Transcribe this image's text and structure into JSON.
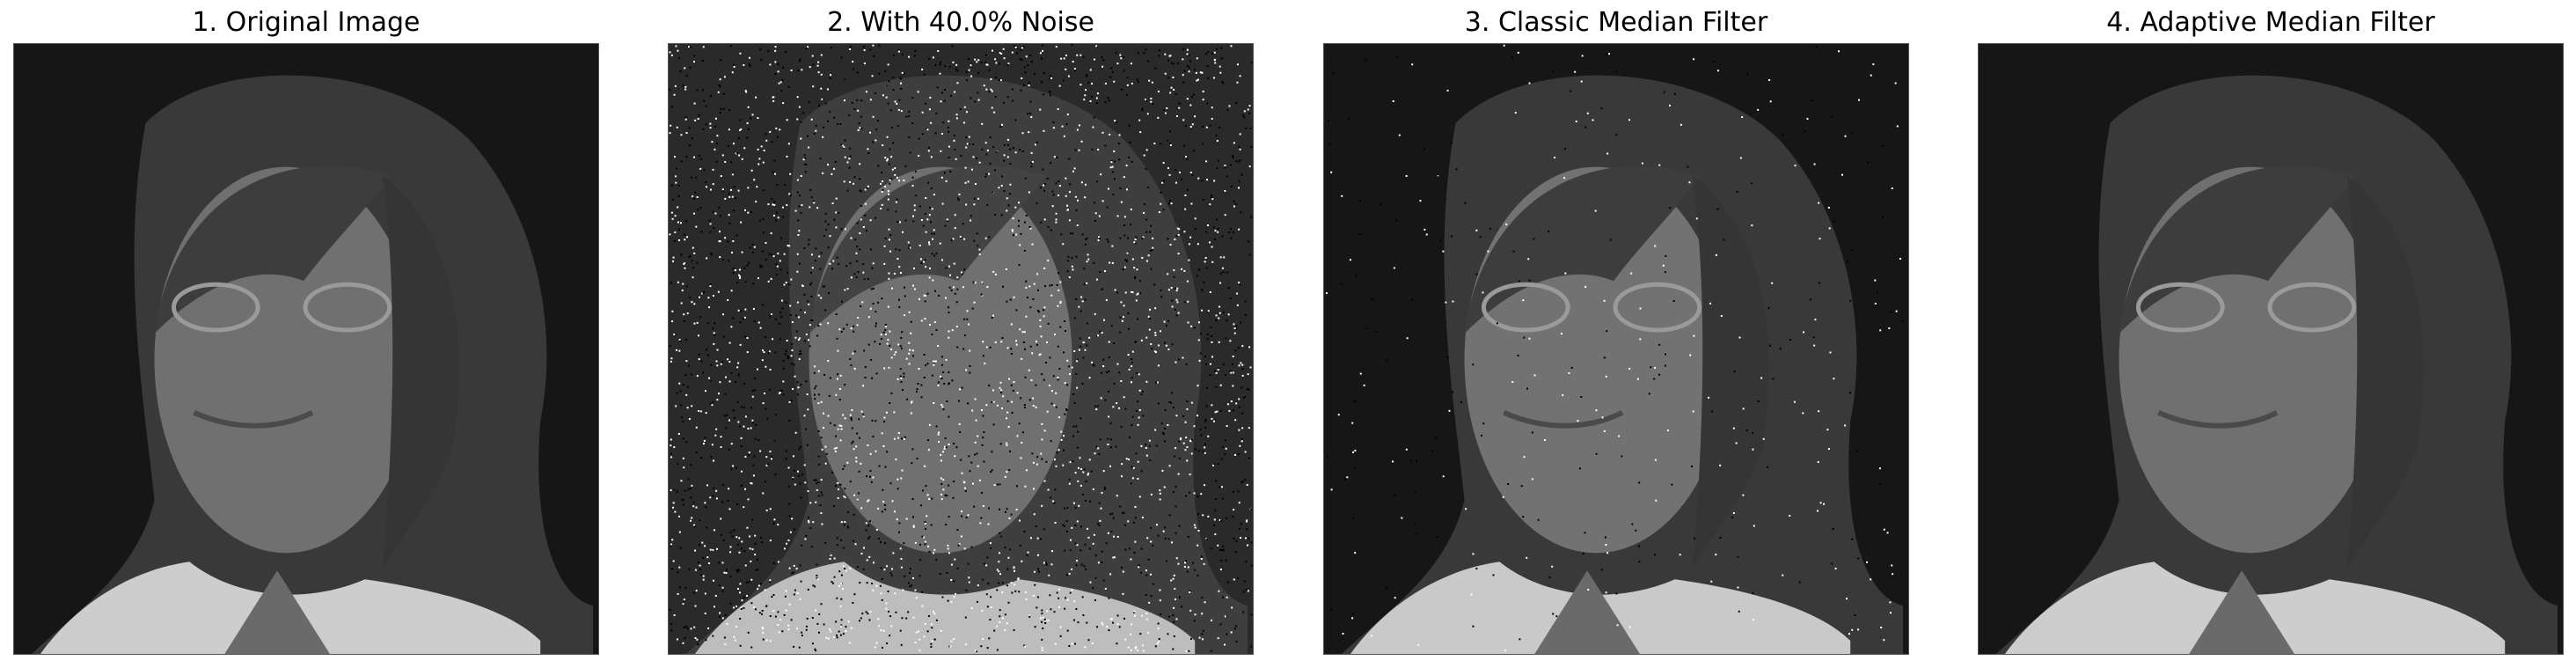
{
  "figure": {
    "panels": [
      {
        "title": "1. Original Image",
        "noise_fraction": 0.0,
        "filter": "none"
      },
      {
        "title": "2. With 40.0% Noise",
        "noise_fraction": 0.4,
        "filter": "none"
      },
      {
        "title": "3. Classic Median Filter",
        "noise_fraction": 0.04,
        "filter": "classic-median"
      },
      {
        "title": "4. Adaptive Median Filter",
        "noise_fraction": 0.0,
        "filter": "adaptive-median"
      }
    ]
  },
  "colors": {
    "background": "#161616",
    "hair": "#3a3a3a",
    "skin": "#7a7a7a",
    "clothing": "#cfcfcf",
    "noise_white": "#ffffff",
    "noise_black": "#000000"
  }
}
